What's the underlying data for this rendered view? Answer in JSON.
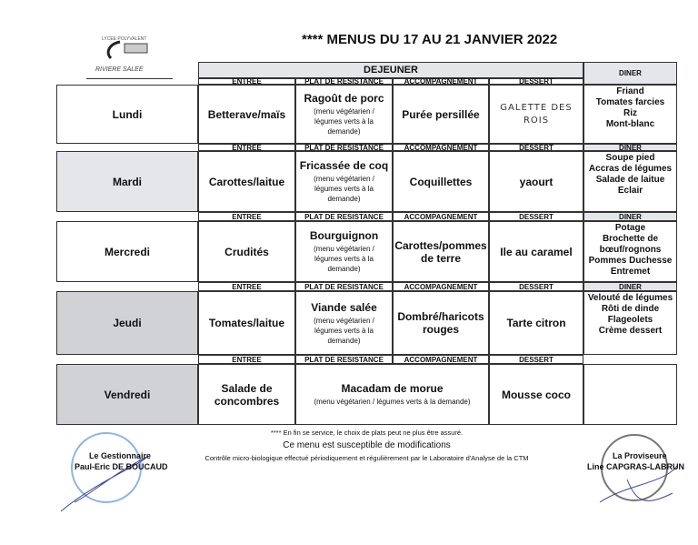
{
  "header": {
    "title": "**** MENUS DU 17 AU 21 JANVIER 2022",
    "logo_text": "LYCEE POLYVALENT JOSEPH ZOBEL",
    "school": "RIVIERE SALEE"
  },
  "table": {
    "lunch": "DEJEUNER",
    "dinner": "DINER",
    "columns": [
      "ENTREE",
      "PLAT DE RESISTANCE",
      "ACCOMPAGNEMENT",
      "DESSERT"
    ],
    "veg_note": "(menu végétarien / légumes verts à la demande)",
    "days": [
      {
        "day": "Lundi",
        "entree": "Betterave/maïs",
        "plat": "Ragoût de porc",
        "accomp": "Purée persillée",
        "dessert": "GALETTE DES ROIS",
        "diner": [
          "Friand",
          "Tomates farcies",
          "Riz",
          "Mont-blanc"
        ]
      },
      {
        "day": "Mardi",
        "entree": "Carottes/laitue",
        "plat": "Fricassée de coq",
        "accomp": "Coquillettes",
        "dessert": "yaourt",
        "diner": [
          "Soupe pied",
          "Accras de légumes",
          "Salade de laitue",
          "Eclair"
        ]
      },
      {
        "day": "Mercredi",
        "entree": "Crudités",
        "plat": "Bourguignon",
        "accomp": "Carottes/pommes de terre",
        "dessert": "Ile au caramel",
        "diner": [
          "Potage",
          "Brochette de bœuf/rognons",
          "Pommes Duchesse",
          "Entremet"
        ]
      },
      {
        "day": "Jeudi",
        "entree": "Tomates/laitue",
        "plat": "Viande salée",
        "accomp": "Dombré/haricots rouges",
        "dessert": "Tarte citron",
        "diner": [
          "Velouté de légumes",
          "Rôti de dinde",
          "Flageolets",
          "Crème dessert"
        ]
      },
      {
        "day": "Vendredi",
        "entree": "Salade de concombres",
        "plat": "Macadam de morue",
        "dessert": "Mousse coco"
      }
    ]
  },
  "footer": {
    "note": "**** En fin se service, le choix de plats peut ne plus être assuré.",
    "modif": "Ce menu est susceptible de modifications",
    "control": "Contrôle micro-biologique effectué périodiquement et régulièrement par le Laboratoire d'Analyse de la CTM",
    "left_role": "Le Gestionnaire",
    "left_name": "Paul-Eric DE BOUCAUD",
    "right_role": "La Proviseure",
    "right_name": "Line CAPGRAS-LABRUN"
  }
}
